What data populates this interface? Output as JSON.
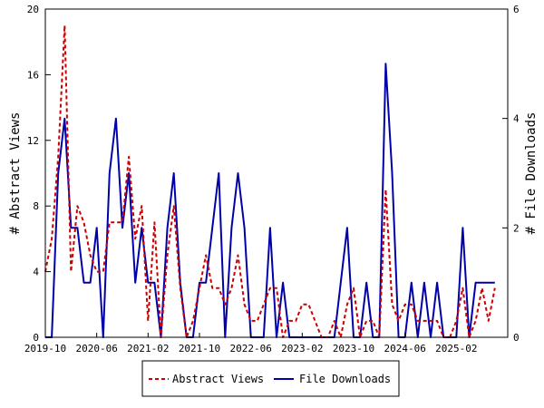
{
  "chart_data": {
    "type": "line",
    "x_tick_labels": [
      "2019-10",
      "2020-06",
      "2021-02",
      "2021-10",
      "2022-06",
      "2023-02",
      "2023-10",
      "2024-06",
      "2025-02"
    ],
    "xlim": [
      "2019-10",
      "2025-10"
    ],
    "left_axis": {
      "label": "# Abstract Views",
      "ylim": [
        0,
        20
      ],
      "ticks": [
        0,
        4,
        8,
        12,
        16,
        20
      ]
    },
    "right_axis": {
      "label": "# File Downloads",
      "ylim": [
        0,
        6
      ],
      "ticks": [
        0,
        2,
        4,
        6
      ]
    },
    "legend": {
      "placement": "bottom-center",
      "border": true
    },
    "grid": false,
    "series": [
      {
        "name": "Abstract Views",
        "axis": "left",
        "color": "#cc0000",
        "style": "dashed",
        "points": [
          [
            "2019-10",
            4
          ],
          [
            "2019-11",
            6
          ],
          [
            "2019-12",
            11
          ],
          [
            "2020-01",
            19
          ],
          [
            "2020-02",
            4
          ],
          [
            "2020-03",
            8
          ],
          [
            "2020-04",
            7
          ],
          [
            "2020-05",
            5
          ],
          [
            "2020-06",
            4
          ],
          [
            "2020-07",
            4
          ],
          [
            "2020-08",
            7
          ],
          [
            "2020-09",
            7
          ],
          [
            "2020-10",
            7
          ],
          [
            "2020-11",
            11
          ],
          [
            "2020-12",
            6
          ],
          [
            "2021-01",
            8
          ],
          [
            "2021-02",
            1
          ],
          [
            "2021-03",
            7
          ],
          [
            "2021-04",
            0
          ],
          [
            "2021-05",
            5
          ],
          [
            "2021-06",
            8
          ],
          [
            "2021-07",
            3
          ],
          [
            "2021-08",
            0
          ],
          [
            "2021-09",
            1
          ],
          [
            "2021-10",
            3
          ],
          [
            "2021-11",
            5
          ],
          [
            "2021-12",
            3
          ],
          [
            "2022-01",
            3
          ],
          [
            "2022-02",
            2
          ],
          [
            "2022-03",
            3
          ],
          [
            "2022-04",
            5
          ],
          [
            "2022-05",
            2
          ],
          [
            "2022-06",
            1
          ],
          [
            "2022-07",
            1
          ],
          [
            "2022-08",
            2
          ],
          [
            "2022-09",
            3
          ],
          [
            "2022-10",
            3
          ],
          [
            "2022-11",
            0
          ],
          [
            "2022-12",
            1
          ],
          [
            "2023-01",
            1
          ],
          [
            "2023-02",
            2
          ],
          [
            "2023-03",
            2
          ],
          [
            "2023-04",
            1
          ],
          [
            "2023-05",
            0
          ],
          [
            "2023-06",
            0
          ],
          [
            "2023-07",
            1
          ],
          [
            "2023-08",
            0
          ],
          [
            "2023-09",
            2
          ],
          [
            "2023-10",
            3
          ],
          [
            "2023-11",
            0
          ],
          [
            "2023-12",
            1
          ],
          [
            "2024-01",
            1
          ],
          [
            "2024-02",
            0
          ],
          [
            "2024-03",
            9
          ],
          [
            "2024-04",
            2
          ],
          [
            "2024-05",
            1
          ],
          [
            "2024-06",
            2
          ],
          [
            "2024-07",
            2
          ],
          [
            "2024-08",
            1
          ],
          [
            "2024-09",
            1
          ],
          [
            "2024-10",
            1
          ],
          [
            "2024-11",
            1
          ],
          [
            "2024-12",
            0
          ],
          [
            "2025-01",
            0
          ],
          [
            "2025-02",
            1
          ],
          [
            "2025-03",
            3
          ],
          [
            "2025-04",
            0
          ],
          [
            "2025-05",
            1
          ],
          [
            "2025-06",
            3
          ],
          [
            "2025-07",
            1
          ],
          [
            "2025-08",
            3
          ]
        ]
      },
      {
        "name": "File Downloads",
        "axis": "right",
        "color": "#0000aa",
        "style": "solid",
        "points": [
          [
            "2019-10",
            0
          ],
          [
            "2019-11",
            0
          ],
          [
            "2019-12",
            3
          ],
          [
            "2020-01",
            4
          ],
          [
            "2020-02",
            2
          ],
          [
            "2020-03",
            2
          ],
          [
            "2020-04",
            1
          ],
          [
            "2020-05",
            1
          ],
          [
            "2020-06",
            2
          ],
          [
            "2020-07",
            0
          ],
          [
            "2020-08",
            3
          ],
          [
            "2020-09",
            4
          ],
          [
            "2020-10",
            2
          ],
          [
            "2020-11",
            3
          ],
          [
            "2020-12",
            1
          ],
          [
            "2021-01",
            2
          ],
          [
            "2021-02",
            1
          ],
          [
            "2021-03",
            1
          ],
          [
            "2021-04",
            0
          ],
          [
            "2021-05",
            2
          ],
          [
            "2021-06",
            3
          ],
          [
            "2021-07",
            1
          ],
          [
            "2021-08",
            0
          ],
          [
            "2021-09",
            0
          ],
          [
            "2021-10",
            1
          ],
          [
            "2021-11",
            1
          ],
          [
            "2021-12",
            2
          ],
          [
            "2022-01",
            3
          ],
          [
            "2022-02",
            0
          ],
          [
            "2022-03",
            2
          ],
          [
            "2022-04",
            3
          ],
          [
            "2022-05",
            2
          ],
          [
            "2022-06",
            0
          ],
          [
            "2022-07",
            0
          ],
          [
            "2022-08",
            0
          ],
          [
            "2022-09",
            2
          ],
          [
            "2022-10",
            0
          ],
          [
            "2022-11",
            1
          ],
          [
            "2022-12",
            0
          ],
          [
            "2023-01",
            0
          ],
          [
            "2023-02",
            0
          ],
          [
            "2023-03",
            0
          ],
          [
            "2023-04",
            0
          ],
          [
            "2023-05",
            0
          ],
          [
            "2023-06",
            0
          ],
          [
            "2023-07",
            0
          ],
          [
            "2023-08",
            1
          ],
          [
            "2023-09",
            2
          ],
          [
            "2023-10",
            0
          ],
          [
            "2023-11",
            0
          ],
          [
            "2023-12",
            1
          ],
          [
            "2024-01",
            0
          ],
          [
            "2024-02",
            0
          ],
          [
            "2024-03",
            5
          ],
          [
            "2024-04",
            3
          ],
          [
            "2024-05",
            0
          ],
          [
            "2024-06",
            0
          ],
          [
            "2024-07",
            1
          ],
          [
            "2024-08",
            0
          ],
          [
            "2024-09",
            1
          ],
          [
            "2024-10",
            0
          ],
          [
            "2024-11",
            1
          ],
          [
            "2024-12",
            0
          ],
          [
            "2025-01",
            0
          ],
          [
            "2025-02",
            0
          ],
          [
            "2025-03",
            2
          ],
          [
            "2025-04",
            0
          ],
          [
            "2025-05",
            1
          ],
          [
            "2025-06",
            1
          ],
          [
            "2025-07",
            1
          ],
          [
            "2025-08",
            1
          ]
        ]
      }
    ]
  }
}
